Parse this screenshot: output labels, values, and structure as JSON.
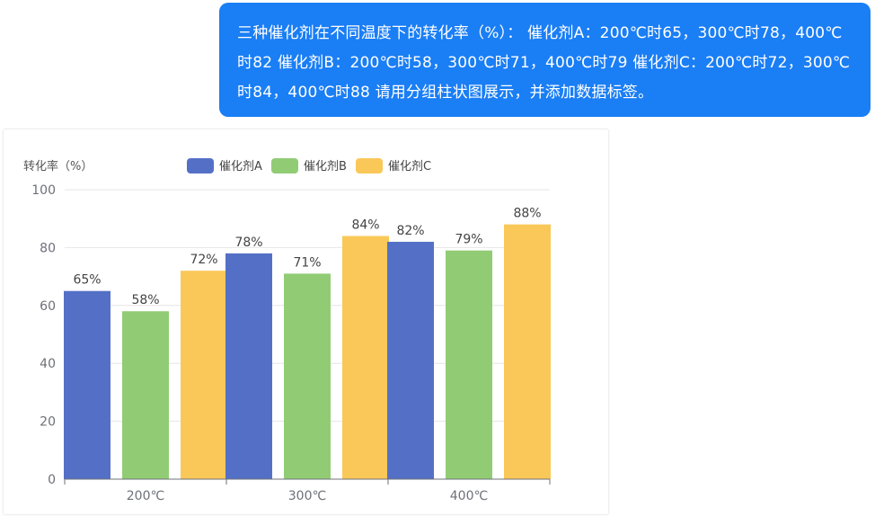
{
  "message": {
    "text": "三种催化剂在不同温度下的转化率（%）： 催化剂A：200℃时65，300℃时78，400℃时82 催化剂B：200℃时58，300℃时71，400℃时79 催化剂C：200℃时72，300℃时84，400℃时88 请用分组柱状图展示，并添加数据标签。"
  },
  "chart_data": {
    "type": "bar",
    "title": "",
    "ylabel": "转化率（%）",
    "xlabel": "",
    "categories": [
      "200℃",
      "300℃",
      "400℃"
    ],
    "series": [
      {
        "name": "催化剂A",
        "values": [
          65,
          78,
          82
        ],
        "color": "#5470c6"
      },
      {
        "name": "催化剂B",
        "values": [
          58,
          71,
          79
        ],
        "color": "#91cc75"
      },
      {
        "name": "催化剂C",
        "values": [
          72,
          84,
          88
        ],
        "color": "#fac858"
      }
    ],
    "ylim": [
      0,
      100
    ],
    "yticks": [
      0,
      20,
      40,
      60,
      80,
      100
    ],
    "data_label_suffix": "%",
    "legend_position": "top",
    "grid": true
  }
}
